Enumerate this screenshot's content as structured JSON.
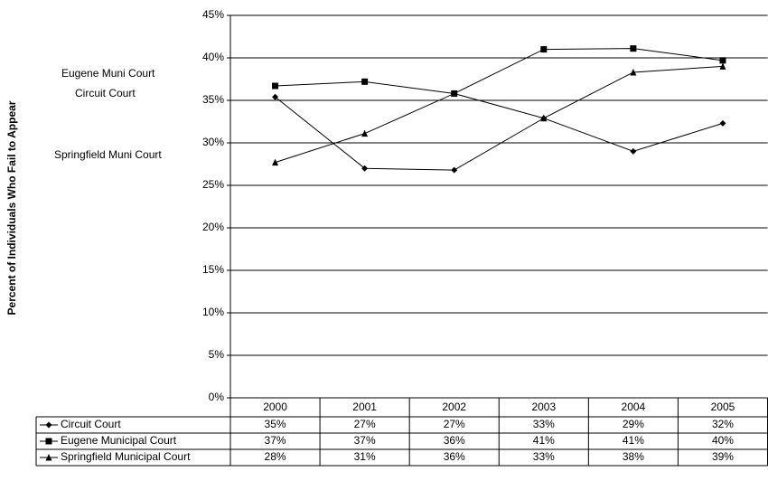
{
  "chart_data": {
    "type": "line",
    "ylabel": "Percent of Individuals Who Fail to Appear",
    "categories": [
      "2000",
      "2001",
      "2002",
      "2003",
      "2004",
      "2005"
    ],
    "series": [
      {
        "name": "Circuit Court",
        "color": "#000000",
        "marker": "diamond",
        "values": [
          35.4,
          27.0,
          26.8,
          32.9,
          29.0,
          32.3
        ],
        "value_labels": [
          "35%",
          "27%",
          "27%",
          "33%",
          "29%",
          "32%"
        ]
      },
      {
        "name": "Eugene Municipal Court",
        "color": "#000000",
        "marker": "square",
        "values": [
          36.7,
          37.2,
          35.8,
          41.0,
          41.1,
          39.7
        ],
        "value_labels": [
          "37%",
          "37%",
          "36%",
          "41%",
          "41%",
          "40%"
        ]
      },
      {
        "name": "Springfield Municipal Court",
        "color": "#000000",
        "marker": "triangle",
        "values": [
          27.7,
          31.1,
          35.8,
          32.9,
          38.3,
          39.0
        ],
        "value_labels": [
          "28%",
          "31%",
          "36%",
          "33%",
          "38%",
          "39%"
        ]
      }
    ],
    "annotations": [
      "Eugene Muni Court",
      "Circuit Court",
      "Springfield Muni Court"
    ],
    "ylim": [
      0,
      45
    ],
    "yticks": [
      {
        "value": 0,
        "label": "0%"
      },
      {
        "value": 5,
        "label": "5%"
      },
      {
        "value": 10,
        "label": "10%"
      },
      {
        "value": 15,
        "label": "15%"
      },
      {
        "value": 20,
        "label": "20%"
      },
      {
        "value": 25,
        "label": "25%"
      },
      {
        "value": 30,
        "label": "30%"
      },
      {
        "value": 35,
        "label": "35%"
      },
      {
        "value": 40,
        "label": "40%"
      },
      {
        "value": 45,
        "label": "45%"
      }
    ],
    "grid": true
  }
}
